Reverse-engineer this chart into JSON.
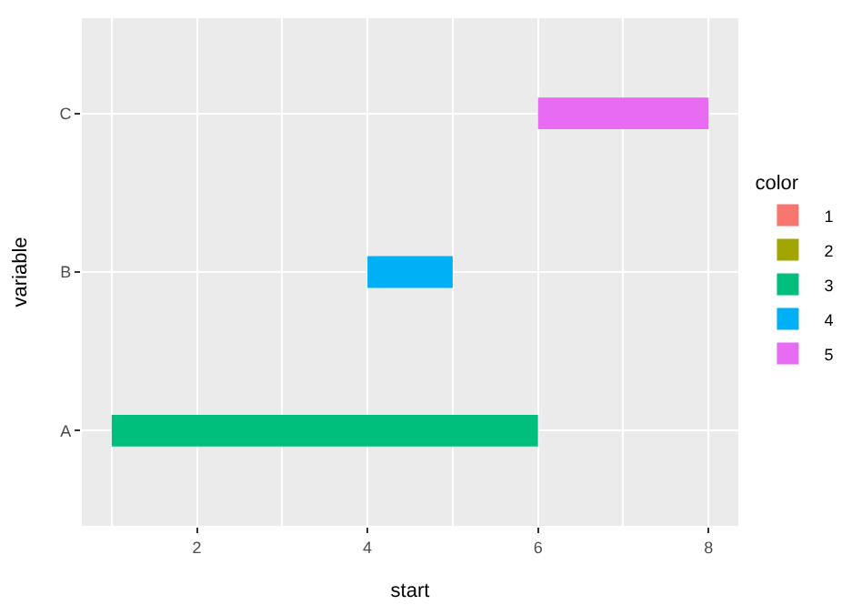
{
  "chart_data": {
    "type": "bar",
    "orientation": "horizontal",
    "xlabel": "start",
    "ylabel": "variable",
    "legend_title": "color",
    "legend": "right",
    "grid": true,
    "categories": [
      "C",
      "B",
      "A"
    ],
    "xlim": [
      0.65,
      8.35
    ],
    "xticks": [
      2,
      4,
      6,
      8
    ],
    "series": [
      {
        "name": "1",
        "color": "#f8766d",
        "values": [
          null,
          null,
          null
        ],
        "base": [
          null,
          null,
          null
        ]
      },
      {
        "name": "2",
        "color": "#a3a500",
        "values": [
          null,
          null,
          null
        ],
        "base": [
          null,
          null,
          null
        ]
      },
      {
        "name": "3",
        "color": "#00bf7d",
        "values": [
          null,
          null,
          5
        ],
        "base": [
          null,
          null,
          1
        ]
      },
      {
        "name": "4",
        "color": "#00b0f6",
        "values": [
          null,
          1,
          null
        ],
        "base": [
          null,
          4,
          null
        ]
      },
      {
        "name": "5",
        "color": "#e76bf3",
        "values": [
          2,
          null,
          null
        ],
        "base": [
          6,
          null,
          null
        ]
      }
    ]
  }
}
